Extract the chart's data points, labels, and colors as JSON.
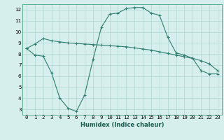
{
  "xlabel": "Humidex (Indice chaleur)",
  "x_values": [
    0,
    1,
    2,
    3,
    4,
    5,
    6,
    7,
    8,
    9,
    10,
    11,
    12,
    13,
    14,
    15,
    16,
    17,
    18,
    19,
    20,
    21,
    22,
    23
  ],
  "line1_y": [
    8.5,
    8.9,
    9.4,
    9.2,
    9.1,
    9.0,
    8.95,
    8.9,
    8.85,
    8.8,
    8.75,
    8.7,
    8.65,
    8.55,
    8.45,
    8.35,
    8.2,
    8.05,
    7.9,
    7.75,
    7.6,
    7.4,
    7.1,
    6.5
  ],
  "line2_y": [
    8.5,
    7.9,
    7.8,
    6.3,
    4.0,
    3.1,
    2.8,
    4.3,
    7.5,
    10.4,
    11.6,
    11.7,
    12.1,
    12.2,
    12.2,
    11.7,
    11.5,
    9.5,
    8.1,
    7.9,
    7.6,
    6.5,
    6.2,
    6.2
  ],
  "line_color": "#2e7d6e",
  "bg_color": "#d6efec",
  "grid_color": "#b8dbd7",
  "ylim": [
    2.5,
    12.5
  ],
  "yticks": [
    3,
    4,
    5,
    6,
    7,
    8,
    9,
    10,
    11,
    12
  ],
  "xticks": [
    0,
    1,
    2,
    3,
    4,
    5,
    6,
    7,
    8,
    9,
    10,
    11,
    12,
    13,
    14,
    15,
    16,
    17,
    18,
    19,
    20,
    21,
    22,
    23
  ],
  "marker": "+",
  "tick_fontsize": 5.2,
  "xlabel_fontsize": 6.0
}
